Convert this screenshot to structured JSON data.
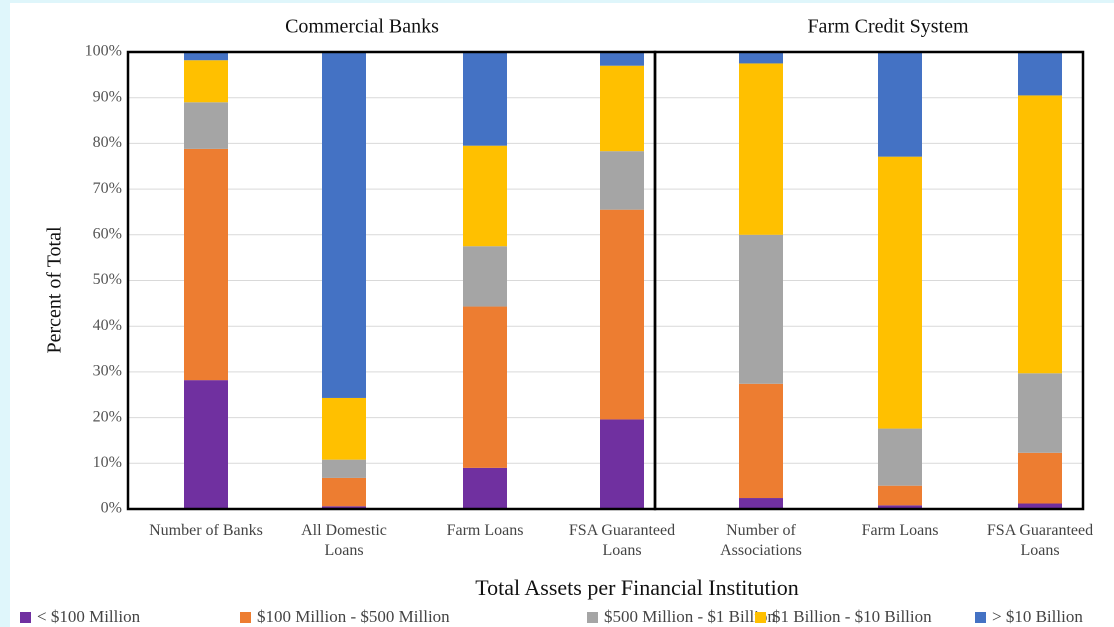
{
  "chart_data": {
    "type": "stacked_bar",
    "y_label": "Percent of Total",
    "x_label": "Total Assets per Financial Institution",
    "groups": [
      {
        "title": "Commercial Banks",
        "categories": [
          "Number of Banks",
          "All Domestic\nLoans",
          "Farm Loans",
          "FSA Guaranteed\nLoans"
        ]
      },
      {
        "title": "Farm Credit System",
        "categories": [
          "Number of\nAssociations",
          "Farm Loans",
          "FSA Guaranteed\nLoans"
        ]
      }
    ],
    "series": [
      {
        "name": "< $100 Million",
        "color": "#7030a0",
        "values": [
          28.2,
          0.6,
          9.0,
          19.6,
          2.4,
          0.8,
          1.2
        ]
      },
      {
        "name": "$100 Million - $500 Million",
        "color": "#ed7d31",
        "values": [
          50.6,
          6.2,
          35.3,
          45.9,
          25.0,
          4.3,
          11.1
        ]
      },
      {
        "name": "$500 Million - $1 Billion",
        "color": "#a5a5a5",
        "values": [
          10.2,
          4.0,
          13.2,
          12.8,
          32.6,
          12.5,
          17.4
        ]
      },
      {
        "name": "$1 Billion - $10 Billion",
        "color": "#ffc000",
        "values": [
          9.2,
          13.5,
          22.0,
          18.7,
          37.5,
          59.5,
          60.8
        ]
      },
      {
        "name": "> $10 Billion",
        "color": "#4472c4",
        "values": [
          1.8,
          75.7,
          20.5,
          3.0,
          2.5,
          22.9,
          9.5
        ]
      }
    ],
    "ylim": [
      0,
      100
    ],
    "yticks": [
      {
        "value": 0,
        "label": "0%"
      },
      {
        "value": 10,
        "label": "10%"
      },
      {
        "value": 20,
        "label": "20%"
      },
      {
        "value": 30,
        "label": "30%"
      },
      {
        "value": 40,
        "label": "40%"
      },
      {
        "value": 50,
        "label": "50%"
      },
      {
        "value": 60,
        "label": "60%"
      },
      {
        "value": 70,
        "label": "70%"
      },
      {
        "value": 80,
        "label": "80%"
      },
      {
        "value": 90,
        "label": "90%"
      },
      {
        "value": 100,
        "label": "100%"
      }
    ],
    "grid": true
  }
}
